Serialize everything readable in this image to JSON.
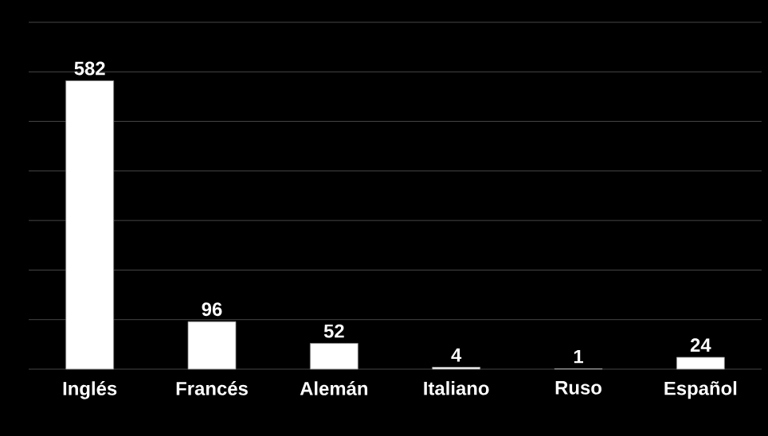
{
  "chart_data": {
    "type": "bar",
    "categories": [
      "Inglés",
      "Francés",
      "Alemán",
      "Italiano",
      "Ruso",
      "Español"
    ],
    "values": [
      582,
      96,
      52,
      4,
      1,
      24
    ],
    "color": "#ffffff",
    "data_labels": true,
    "grid": "y",
    "ylim": [
      0,
      700
    ],
    "yticks": [
      {
        "value": 0,
        "label": null
      },
      {
        "value": 100,
        "label": null
      },
      {
        "value": 200,
        "label": null
      },
      {
        "value": 300,
        "label": null
      },
      {
        "value": 400,
        "label": null
      },
      {
        "value": 500,
        "label": null
      },
      {
        "value": 600,
        "label": null
      },
      {
        "value": 700,
        "label": null
      }
    ],
    "tick_labels": "x"
  }
}
